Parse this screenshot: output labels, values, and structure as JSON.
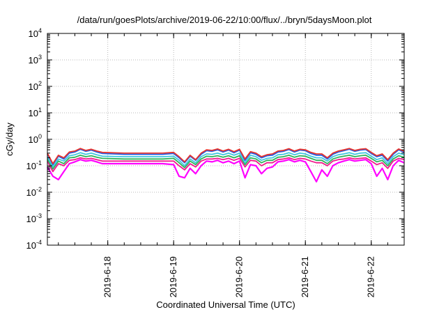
{
  "chart_data": {
    "type": "line",
    "title": "/data/run/goesPlots/archive/2019-06-22/10:00/flux/../bryn/5daysMoon.plot",
    "xlabel": "Coordinated Universal Time (UTC)",
    "ylabel": "cGy/day",
    "xscale": "time",
    "yscale": "log",
    "xlim": [
      "2019-06-17 02:00",
      "2019-06-22 12:00"
    ],
    "ylim": [
      0.0001,
      10000
    ],
    "grid": true,
    "legend": "none",
    "x_ticks": [
      "2019-6-18",
      "2019-6-19",
      "2019-6-20",
      "2019-6-21",
      "2019-6-22"
    ],
    "y_ticks": [
      {
        "base": "10",
        "exp": "-4",
        "value": 0.0001
      },
      {
        "base": "10",
        "exp": "-3",
        "value": 0.001
      },
      {
        "base": "10",
        "exp": "-2",
        "value": 0.01
      },
      {
        "base": "10",
        "exp": "-1",
        "value": 0.1
      },
      {
        "base": "10",
        "exp": "0",
        "value": 1
      },
      {
        "base": "10",
        "exp": "1",
        "value": 10
      },
      {
        "base": "10",
        "exp": "2",
        "value": 100
      },
      {
        "base": "10",
        "exp": "3",
        "value": 1000
      },
      {
        "base": "10",
        "exp": "4",
        "value": 10000
      }
    ],
    "x": [
      "2019-06-17 02:00",
      "2019-06-17 04:00",
      "2019-06-17 06:00",
      "2019-06-17 08:00",
      "2019-06-17 10:00",
      "2019-06-17 12:00",
      "2019-06-17 14:00",
      "2019-06-17 16:00",
      "2019-06-17 18:00",
      "2019-06-17 20:00",
      "2019-06-17 22:00",
      "2019-06-18 06:00",
      "2019-06-18 14:00",
      "2019-06-18 20:00",
      "2019-06-19 00:00",
      "2019-06-19 02:00",
      "2019-06-19 04:00",
      "2019-06-19 06:00",
      "2019-06-19 08:00",
      "2019-06-19 10:00",
      "2019-06-19 12:00",
      "2019-06-19 14:00",
      "2019-06-19 16:00",
      "2019-06-19 18:00",
      "2019-06-19 20:00",
      "2019-06-19 22:00",
      "2019-06-20 00:00",
      "2019-06-20 02:00",
      "2019-06-20 04:00",
      "2019-06-20 06:00",
      "2019-06-20 08:00",
      "2019-06-20 10:00",
      "2019-06-20 12:00",
      "2019-06-20 14:00",
      "2019-06-20 16:00",
      "2019-06-20 18:00",
      "2019-06-20 20:00",
      "2019-06-20 22:00",
      "2019-06-21 00:00",
      "2019-06-21 02:00",
      "2019-06-21 04:00",
      "2019-06-21 06:00",
      "2019-06-21 08:00",
      "2019-06-21 10:00",
      "2019-06-21 12:00",
      "2019-06-21 14:00",
      "2019-06-21 16:00",
      "2019-06-21 18:00",
      "2019-06-21 20:00",
      "2019-06-21 22:00",
      "2019-06-22 00:00",
      "2019-06-22 02:00",
      "2019-06-22 04:00",
      "2019-06-22 06:00",
      "2019-06-22 08:00",
      "2019-06-22 10:00",
      "2019-06-22 12:00"
    ],
    "series": [
      {
        "color": "#e8332d",
        "values": [
          0.3,
          0.12,
          0.25,
          0.2,
          0.33,
          0.36,
          0.45,
          0.38,
          0.42,
          0.36,
          0.32,
          0.3,
          0.3,
          0.3,
          0.32,
          0.22,
          0.14,
          0.25,
          0.17,
          0.3,
          0.4,
          0.38,
          0.43,
          0.36,
          0.42,
          0.34,
          0.42,
          0.18,
          0.34,
          0.3,
          0.22,
          0.26,
          0.28,
          0.36,
          0.38,
          0.44,
          0.36,
          0.42,
          0.4,
          0.32,
          0.28,
          0.28,
          0.2,
          0.3,
          0.36,
          0.4,
          0.45,
          0.38,
          0.42,
          0.44,
          0.32,
          0.24,
          0.28,
          0.17,
          0.3,
          0.43,
          0.35
        ]
      },
      {
        "color": "#1f5ee8",
        "values": [
          0.28,
          0.11,
          0.23,
          0.18,
          0.3,
          0.33,
          0.42,
          0.35,
          0.39,
          0.33,
          0.29,
          0.27,
          0.27,
          0.27,
          0.29,
          0.2,
          0.13,
          0.23,
          0.16,
          0.27,
          0.37,
          0.35,
          0.4,
          0.33,
          0.39,
          0.31,
          0.39,
          0.16,
          0.31,
          0.27,
          0.2,
          0.24,
          0.25,
          0.33,
          0.35,
          0.41,
          0.33,
          0.39,
          0.37,
          0.29,
          0.25,
          0.25,
          0.18,
          0.27,
          0.33,
          0.37,
          0.42,
          0.35,
          0.39,
          0.41,
          0.29,
          0.22,
          0.25,
          0.15,
          0.27,
          0.4,
          0.32
        ]
      },
      {
        "color": "#3fc7e0",
        "values": [
          0.22,
          0.09,
          0.18,
          0.15,
          0.24,
          0.26,
          0.31,
          0.27,
          0.3,
          0.26,
          0.23,
          0.22,
          0.22,
          0.22,
          0.23,
          0.16,
          0.1,
          0.18,
          0.13,
          0.22,
          0.28,
          0.27,
          0.3,
          0.26,
          0.3,
          0.25,
          0.3,
          0.13,
          0.25,
          0.22,
          0.16,
          0.19,
          0.2,
          0.26,
          0.27,
          0.31,
          0.26,
          0.3,
          0.28,
          0.23,
          0.2,
          0.2,
          0.15,
          0.22,
          0.26,
          0.28,
          0.31,
          0.27,
          0.3,
          0.31,
          0.23,
          0.17,
          0.2,
          0.12,
          0.22,
          0.3,
          0.26
        ]
      },
      {
        "color": "#2fb35a",
        "values": [
          0.18,
          0.075,
          0.15,
          0.12,
          0.2,
          0.21,
          0.25,
          0.22,
          0.24,
          0.21,
          0.19,
          0.18,
          0.18,
          0.18,
          0.19,
          0.13,
          0.085,
          0.15,
          0.11,
          0.18,
          0.23,
          0.22,
          0.24,
          0.21,
          0.24,
          0.2,
          0.24,
          0.11,
          0.2,
          0.18,
          0.13,
          0.16,
          0.16,
          0.21,
          0.22,
          0.25,
          0.21,
          0.24,
          0.23,
          0.19,
          0.16,
          0.16,
          0.12,
          0.18,
          0.21,
          0.23,
          0.25,
          0.22,
          0.24,
          0.25,
          0.19,
          0.14,
          0.16,
          0.1,
          0.18,
          0.24,
          0.21
        ]
      },
      {
        "color": "#f0198c",
        "values": [
          0.15,
          0.06,
          0.12,
          0.1,
          0.16,
          0.17,
          0.2,
          0.18,
          0.19,
          0.17,
          0.15,
          0.15,
          0.15,
          0.15,
          0.15,
          0.1,
          0.07,
          0.12,
          0.09,
          0.15,
          0.18,
          0.18,
          0.19,
          0.17,
          0.19,
          0.16,
          0.19,
          0.09,
          0.16,
          0.15,
          0.1,
          0.13,
          0.13,
          0.17,
          0.18,
          0.2,
          0.17,
          0.19,
          0.18,
          0.15,
          0.13,
          0.13,
          0.1,
          0.15,
          0.17,
          0.18,
          0.2,
          0.18,
          0.19,
          0.2,
          0.15,
          0.11,
          0.13,
          0.08,
          0.15,
          0.19,
          0.17
        ]
      },
      {
        "color": "#ff00ff",
        "values": [
          0.09,
          0.04,
          0.03,
          0.06,
          0.12,
          0.14,
          0.17,
          0.15,
          0.16,
          0.14,
          0.12,
          0.12,
          0.12,
          0.12,
          0.11,
          0.04,
          0.035,
          0.08,
          0.05,
          0.1,
          0.15,
          0.14,
          0.16,
          0.13,
          0.15,
          0.12,
          0.15,
          0.035,
          0.11,
          0.1,
          0.05,
          0.08,
          0.09,
          0.14,
          0.15,
          0.17,
          0.14,
          0.16,
          0.14,
          0.06,
          0.025,
          0.07,
          0.04,
          0.1,
          0.13,
          0.15,
          0.17,
          0.15,
          0.16,
          0.17,
          0.12,
          0.04,
          0.08,
          0.03,
          0.1,
          0.16,
          0.13
        ]
      }
    ]
  }
}
